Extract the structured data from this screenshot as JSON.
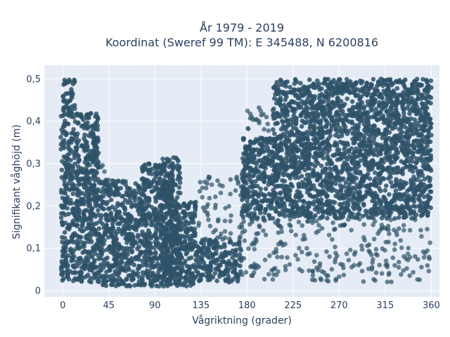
{
  "chart_data": {
    "type": "scatter",
    "title_line1": "År 1979 - 2019",
    "title_line2": "Koordinat (Sweref 99 TM): E 345488, N 6200816",
    "xlabel": "Vågriktning (grader)",
    "ylabel": "Signifikant våghöjd (m)",
    "xlim": [
      -18,
      368
    ],
    "ylim": [
      -0.015,
      0.532
    ],
    "x_ticks": [
      0,
      45,
      90,
      135,
      180,
      225,
      270,
      315,
      360
    ],
    "x_tick_labels": [
      "0",
      "45",
      "90",
      "135",
      "180",
      "225",
      "270",
      "315",
      "360"
    ],
    "y_ticks": [
      0,
      0.1,
      0.2,
      0.3,
      0.4,
      0.5
    ],
    "y_tick_labels": [
      "0",
      "0,1",
      "0,2",
      "0,3",
      "0,4",
      "0,5"
    ],
    "grid": true,
    "legend": "none",
    "colors": {
      "marker": "#2e5268",
      "plot_background": "#e5ecf6",
      "grid": "#ffffff",
      "text": "#2a3f5f"
    },
    "series": [
      {
        "dense_bands": [
          {
            "x": [
              -2,
              35
            ],
            "y": [
              0.02,
              0.42
            ]
          },
          {
            "x": [
              0,
              12
            ],
            "y": [
              0.42,
              0.5
            ]
          },
          {
            "x": [
              35,
              75
            ],
            "y": [
              0.01,
              0.26
            ]
          },
          {
            "x": [
              75,
              108
            ],
            "y": [
              0.01,
              0.3
            ]
          },
          {
            "x": [
              95,
              115
            ],
            "y": [
              0.01,
              0.315
            ]
          },
          {
            "x": [
              108,
              130
            ],
            "y": [
              0.01,
              0.21
            ]
          },
          {
            "x": [
              130,
              175
            ],
            "y": [
              0.02,
              0.12
            ]
          },
          {
            "x": [
              175,
              210
            ],
            "y": [
              0.17,
              0.36
            ]
          },
          {
            "x": [
              205,
              360
            ],
            "y": [
              0.17,
              0.5
            ]
          }
        ],
        "sparse_bands": [
          {
            "x": [
              130,
              180
            ],
            "y": [
              0.12,
              0.27
            ]
          },
          {
            "x": [
              175,
              205
            ],
            "y": [
              0.02,
              0.17
            ]
          },
          {
            "x": [
              205,
              360
            ],
            "y": [
              0.02,
              0.17
            ]
          },
          {
            "x": [
              180,
              210
            ],
            "y": [
              0.36,
              0.44
            ]
          },
          {
            "x": [
              25,
              45
            ],
            "y": [
              0.26,
              0.32
            ]
          }
        ]
      }
    ]
  }
}
